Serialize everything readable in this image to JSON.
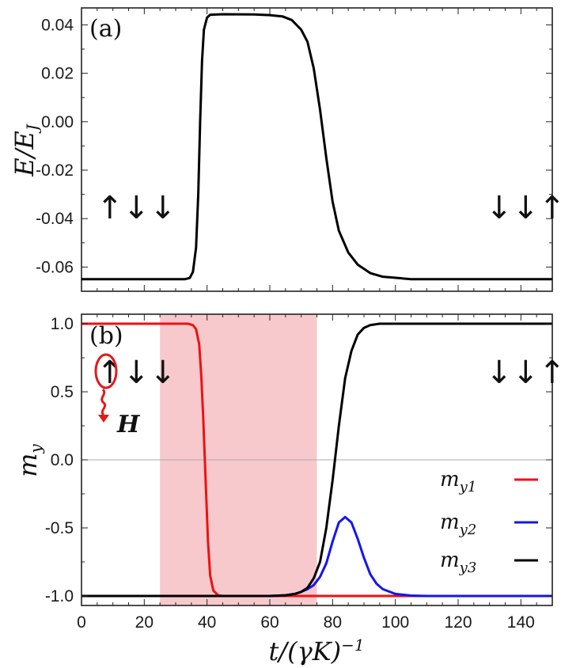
{
  "chart_data": [
    {
      "type": "line",
      "panel_label": "(a)",
      "ylabel": "E/EJ",
      "ylabel_main": "E",
      "ylabel_den": "E",
      "ylabel_sub": "J",
      "xlim": [
        0,
        150
      ],
      "ylim": [
        -0.07,
        0.047
      ],
      "y_ticks": [
        "0.04",
        "0.02",
        "0.00",
        "-0.02",
        "-0.04",
        "-0.06"
      ],
      "y_tick_values": [
        0.04,
        0.02,
        0.0,
        -0.02,
        -0.04,
        -0.06
      ],
      "annotation_left": "↑↓↓",
      "annotation_right": "↓↓↑",
      "series": [
        {
          "name": "E/EJ",
          "color": "#000000",
          "points": [
            [
              0,
              -0.065
            ],
            [
              33,
              -0.065
            ],
            [
              34.5,
              -0.0645
            ],
            [
              35.5,
              -0.062
            ],
            [
              36.5,
              -0.052
            ],
            [
              37.2,
              -0.03
            ],
            [
              37.8,
              -0.0
            ],
            [
              38.4,
              0.025
            ],
            [
              39,
              0.038
            ],
            [
              40,
              0.043
            ],
            [
              41,
              0.0442
            ],
            [
              45,
              0.0444
            ],
            [
              55,
              0.0443
            ],
            [
              60,
              0.044
            ],
            [
              64,
              0.0435
            ],
            [
              67,
              0.042
            ],
            [
              70,
              0.038
            ],
            [
              72,
              0.033
            ],
            [
              74,
              0.022
            ],
            [
              76,
              0.005
            ],
            [
              78,
              -0.015
            ],
            [
              80,
              -0.033
            ],
            [
              82,
              -0.045
            ],
            [
              85,
              -0.054
            ],
            [
              88,
              -0.059
            ],
            [
              92,
              -0.0625
            ],
            [
              96,
              -0.064
            ],
            [
              105,
              -0.065
            ],
            [
              150,
              -0.065
            ]
          ]
        }
      ]
    },
    {
      "type": "line",
      "panel_label": "(b)",
      "ylabel": "my",
      "ylabel_main": "m",
      "ylabel_sub": "y",
      "xlabel": "t/(γK)^-1",
      "xlabel_main": "t/(γK)",
      "xlabel_sup": "−1",
      "xlim": [
        0,
        150
      ],
      "ylim": [
        -1.07,
        1.07
      ],
      "x_ticks": [
        "0",
        "20",
        "40",
        "60",
        "80",
        "100",
        "120",
        "140"
      ],
      "x_tick_values": [
        0,
        20,
        40,
        60,
        80,
        100,
        120,
        140
      ],
      "y_ticks": [
        "1.0",
        "0.5",
        "0.0",
        "-0.5",
        "-1.0"
      ],
      "y_tick_values": [
        1.0,
        0.5,
        0.0,
        -0.5,
        -1.0
      ],
      "shaded_region": [
        25,
        75
      ],
      "shaded_color": "#f7c9cc",
      "annotation_left": "↑↓↓",
      "annotation_right": "↓↓↑",
      "field_label": "H",
      "legend": [
        {
          "label_main": "m",
          "label_sub": "y1",
          "name": "my1",
          "color": "#ee1111"
        },
        {
          "label_main": "m",
          "label_sub": "y2",
          "name": "my2",
          "color": "#1515ee"
        },
        {
          "label_main": "m",
          "label_sub": "y3",
          "name": "my3",
          "color": "#000000"
        }
      ],
      "series": [
        {
          "name": "my1",
          "color": "#ee1111",
          "points": [
            [
              0,
              1
            ],
            [
              34,
              1
            ],
            [
              35.5,
              0.99
            ],
            [
              36.5,
              0.96
            ],
            [
              37.5,
              0.85
            ],
            [
              38.2,
              0.6
            ],
            [
              38.8,
              0.3
            ],
            [
              39.3,
              0.0
            ],
            [
              39.8,
              -0.3
            ],
            [
              40.3,
              -0.6
            ],
            [
              41,
              -0.85
            ],
            [
              42,
              -0.96
            ],
            [
              43.5,
              -0.995
            ],
            [
              45,
              -1
            ],
            [
              150,
              -1
            ]
          ]
        },
        {
          "name": "my2",
          "color": "#1515ee",
          "points": [
            [
              0,
              -1
            ],
            [
              60,
              -1
            ],
            [
              65,
              -0.995
            ],
            [
              68,
              -0.985
            ],
            [
              70,
              -0.97
            ],
            [
              72,
              -0.95
            ],
            [
              74,
              -0.92
            ],
            [
              76,
              -0.86
            ],
            [
              78,
              -0.76
            ],
            [
              80,
              -0.6
            ],
            [
              82,
              -0.46
            ],
            [
              84,
              -0.42
            ],
            [
              86,
              -0.46
            ],
            [
              88,
              -0.58
            ],
            [
              90,
              -0.72
            ],
            [
              92,
              -0.84
            ],
            [
              94,
              -0.91
            ],
            [
              96,
              -0.95
            ],
            [
              100,
              -0.985
            ],
            [
              105,
              -0.997
            ],
            [
              110,
              -1
            ],
            [
              150,
              -1
            ]
          ]
        },
        {
          "name": "my3",
          "color": "#000000",
          "points": [
            [
              0,
              -1
            ],
            [
              60,
              -1
            ],
            [
              65,
              -0.995
            ],
            [
              68,
              -0.985
            ],
            [
              70,
              -0.97
            ],
            [
              72,
              -0.94
            ],
            [
              74,
              -0.87
            ],
            [
              76,
              -0.75
            ],
            [
              78,
              -0.5
            ],
            [
              80,
              -0.15
            ],
            [
              82,
              0.25
            ],
            [
              84,
              0.6
            ],
            [
              86,
              0.8
            ],
            [
              88,
              0.92
            ],
            [
              90,
              0.97
            ],
            [
              92,
              0.99
            ],
            [
              95,
              1
            ],
            [
              150,
              1
            ]
          ]
        }
      ]
    }
  ]
}
